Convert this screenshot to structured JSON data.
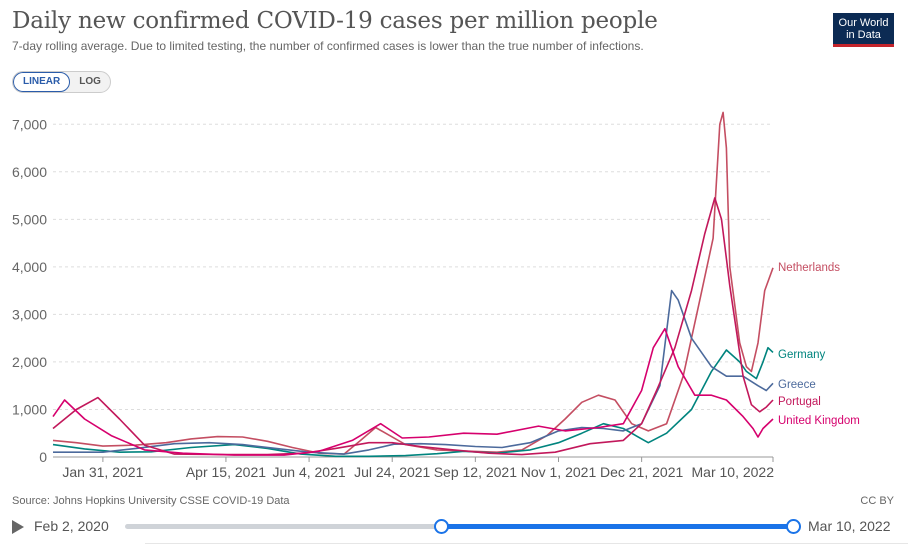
{
  "header": {
    "title": "Daily new confirmed COVID-19 cases per million people",
    "subtitle": "7-day rolling average. Due to limited testing, the number of confirmed cases is lower than the true number of infections.",
    "logo_line1": "Our World",
    "logo_line2": "in Data"
  },
  "controls": {
    "linear_label": "LINEAR",
    "log_label": "LOG",
    "active_scale": "linear"
  },
  "footer": {
    "source": "Source: Johns Hopkins University CSSE COVID-19 Data",
    "license": "CC BY"
  },
  "timeline": {
    "start_label": "Feb 2, 2020",
    "end_label": "Mar 10, 2022",
    "selected_start_fraction": 0.473,
    "selected_end_fraction": 1.0
  },
  "colors": {
    "netherlands": "#c44e62",
    "germany": "#00847e",
    "greece": "#4c6a9c",
    "portugal": "#c2185b",
    "uk": "#d6006d",
    "grid": "#dddddd",
    "accent": "#1a73e8"
  },
  "chart_data": {
    "type": "line",
    "title": "Daily new confirmed COVID-19 cases per million people",
    "xlabel": "",
    "ylabel": "",
    "x_range": [
      "2021-01-01",
      "2022-03-10"
    ],
    "xticks": [
      {
        "date": "2021-01-31",
        "label": "Jan 31, 2021"
      },
      {
        "date": "2021-04-15",
        "label": "Apr 15, 2021"
      },
      {
        "date": "2021-06-04",
        "label": "Jun 4, 2021"
      },
      {
        "date": "2021-07-24",
        "label": "Jul 24, 2021"
      },
      {
        "date": "2021-09-12",
        "label": "Sep 12, 2021"
      },
      {
        "date": "2021-11-01",
        "label": "Nov 1, 2021"
      },
      {
        "date": "2021-12-21",
        "label": "Dec 21, 2021"
      },
      {
        "date": "2022-03-10",
        "label": "Mar 10, 2022"
      }
    ],
    "ylim": [
      0,
      7300
    ],
    "yticks": [
      0,
      1000,
      2000,
      3000,
      4000,
      5000,
      6000,
      7000
    ],
    "ytick_labels": [
      "0",
      "1,000",
      "2,000",
      "3,000",
      "4,000",
      "5,000",
      "6,000",
      "7,000"
    ],
    "grid": true,
    "legend": "right-end labels",
    "series": [
      {
        "name": "Netherlands",
        "color": "#c44e62",
        "points": [
          [
            "2021-01-01",
            350
          ],
          [
            "2021-01-15",
            300
          ],
          [
            "2021-01-31",
            230
          ],
          [
            "2021-02-20",
            250
          ],
          [
            "2021-03-10",
            300
          ],
          [
            "2021-03-25",
            380
          ],
          [
            "2021-04-10",
            430
          ],
          [
            "2021-04-25",
            420
          ],
          [
            "2021-05-10",
            330
          ],
          [
            "2021-05-25",
            200
          ],
          [
            "2021-06-10",
            80
          ],
          [
            "2021-06-25",
            60
          ],
          [
            "2021-07-05",
            350
          ],
          [
            "2021-07-14",
            620
          ],
          [
            "2021-07-20",
            500
          ],
          [
            "2021-08-01",
            260
          ],
          [
            "2021-08-20",
            150
          ],
          [
            "2021-09-10",
            120
          ],
          [
            "2021-09-25",
            100
          ],
          [
            "2021-10-10",
            150
          ],
          [
            "2021-10-25",
            450
          ],
          [
            "2021-11-05",
            800
          ],
          [
            "2021-11-15",
            1150
          ],
          [
            "2021-11-25",
            1300
          ],
          [
            "2021-12-05",
            1200
          ],
          [
            "2021-12-15",
            700
          ],
          [
            "2021-12-25",
            550
          ],
          [
            "2022-01-05",
            700
          ],
          [
            "2022-01-15",
            1700
          ],
          [
            "2022-01-25",
            3300
          ],
          [
            "2022-02-02",
            4600
          ],
          [
            "2022-02-06",
            7000
          ],
          [
            "2022-02-08",
            7250
          ],
          [
            "2022-02-10",
            6500
          ],
          [
            "2022-02-12",
            4000
          ],
          [
            "2022-02-18",
            2400
          ],
          [
            "2022-02-22",
            1900
          ],
          [
            "2022-02-25",
            1800
          ],
          [
            "2022-03-01",
            2400
          ],
          [
            "2022-03-05",
            3500
          ],
          [
            "2022-03-10",
            3980
          ]
        ]
      },
      {
        "name": "Germany",
        "color": "#00847e",
        "points": [
          [
            "2021-01-01",
            260
          ],
          [
            "2021-01-20",
            170
          ],
          [
            "2021-02-10",
            100
          ],
          [
            "2021-03-01",
            110
          ],
          [
            "2021-03-25",
            200
          ],
          [
            "2021-04-20",
            260
          ],
          [
            "2021-05-10",
            180
          ],
          [
            "2021-05-30",
            60
          ],
          [
            "2021-06-20",
            15
          ],
          [
            "2021-07-10",
            15
          ],
          [
            "2021-08-01",
            30
          ],
          [
            "2021-08-20",
            70
          ],
          [
            "2021-09-05",
            120
          ],
          [
            "2021-09-25",
            80
          ],
          [
            "2021-10-15",
            150
          ],
          [
            "2021-11-01",
            300
          ],
          [
            "2021-11-15",
            500
          ],
          [
            "2021-11-28",
            700
          ],
          [
            "2021-12-10",
            600
          ],
          [
            "2021-12-25",
            300
          ],
          [
            "2022-01-05",
            500
          ],
          [
            "2022-01-20",
            1000
          ],
          [
            "2022-02-01",
            1800
          ],
          [
            "2022-02-10",
            2250
          ],
          [
            "2022-02-18",
            2000
          ],
          [
            "2022-02-22",
            1800
          ],
          [
            "2022-02-28",
            1650
          ],
          [
            "2022-03-04",
            2000
          ],
          [
            "2022-03-07",
            2300
          ],
          [
            "2022-03-10",
            2200
          ]
        ]
      },
      {
        "name": "Greece",
        "color": "#4c6a9c",
        "points": [
          [
            "2021-01-01",
            100
          ],
          [
            "2021-01-31",
            100
          ],
          [
            "2021-02-20",
            180
          ],
          [
            "2021-03-15",
            280
          ],
          [
            "2021-04-05",
            300
          ],
          [
            "2021-04-25",
            260
          ],
          [
            "2021-05-15",
            180
          ],
          [
            "2021-06-04",
            100
          ],
          [
            "2021-06-25",
            60
          ],
          [
            "2021-07-10",
            150
          ],
          [
            "2021-07-25",
            270
          ],
          [
            "2021-08-10",
            280
          ],
          [
            "2021-08-25",
            260
          ],
          [
            "2021-09-12",
            220
          ],
          [
            "2021-09-28",
            200
          ],
          [
            "2021-10-15",
            300
          ],
          [
            "2021-11-01",
            550
          ],
          [
            "2021-11-15",
            620
          ],
          [
            "2021-11-28",
            600
          ],
          [
            "2021-12-10",
            550
          ],
          [
            "2021-12-21",
            700
          ],
          [
            "2022-01-01",
            1500
          ],
          [
            "2022-01-08",
            3500
          ],
          [
            "2022-01-12",
            3300
          ],
          [
            "2022-01-20",
            2500
          ],
          [
            "2022-02-01",
            1900
          ],
          [
            "2022-02-10",
            1700
          ],
          [
            "2022-02-20",
            1700
          ],
          [
            "2022-03-01",
            1500
          ],
          [
            "2022-03-06",
            1400
          ],
          [
            "2022-03-10",
            1550
          ]
        ]
      },
      {
        "name": "Portugal",
        "color": "#c2185b",
        "points": [
          [
            "2021-01-01",
            600
          ],
          [
            "2021-01-15",
            1000
          ],
          [
            "2021-01-28",
            1250
          ],
          [
            "2021-02-10",
            800
          ],
          [
            "2021-02-25",
            250
          ],
          [
            "2021-03-15",
            60
          ],
          [
            "2021-04-15",
            50
          ],
          [
            "2021-05-10",
            50
          ],
          [
            "2021-06-01",
            80
          ],
          [
            "2021-06-20",
            180
          ],
          [
            "2021-07-10",
            300
          ],
          [
            "2021-07-24",
            300
          ],
          [
            "2021-08-10",
            220
          ],
          [
            "2021-08-30",
            150
          ],
          [
            "2021-09-20",
            80
          ],
          [
            "2021-10-10",
            50
          ],
          [
            "2021-10-30",
            100
          ],
          [
            "2021-11-20",
            280
          ],
          [
            "2021-12-10",
            350
          ],
          [
            "2021-12-21",
            700
          ],
          [
            "2021-12-30",
            1400
          ],
          [
            "2022-01-10",
            2300
          ],
          [
            "2022-01-20",
            3500
          ],
          [
            "2022-01-28",
            4700
          ],
          [
            "2022-02-03",
            5450
          ],
          [
            "2022-02-07",
            5000
          ],
          [
            "2022-02-12",
            3600
          ],
          [
            "2022-02-20",
            1700
          ],
          [
            "2022-02-25",
            1100
          ],
          [
            "2022-03-02",
            950
          ],
          [
            "2022-03-06",
            1050
          ],
          [
            "2022-03-10",
            1200
          ]
        ]
      },
      {
        "name": "United Kingdom",
        "color": "#d6006d",
        "points": [
          [
            "2021-01-01",
            850
          ],
          [
            "2021-01-08",
            1200
          ],
          [
            "2021-01-20",
            800
          ],
          [
            "2021-02-05",
            450
          ],
          [
            "2021-02-25",
            150
          ],
          [
            "2021-03-20",
            80
          ],
          [
            "2021-04-20",
            40
          ],
          [
            "2021-05-20",
            40
          ],
          [
            "2021-06-10",
            120
          ],
          [
            "2021-06-30",
            350
          ],
          [
            "2021-07-17",
            700
          ],
          [
            "2021-07-30",
            400
          ],
          [
            "2021-08-15",
            420
          ],
          [
            "2021-09-05",
            500
          ],
          [
            "2021-09-25",
            480
          ],
          [
            "2021-10-20",
            650
          ],
          [
            "2021-11-05",
            550
          ],
          [
            "2021-11-25",
            620
          ],
          [
            "2021-12-10",
            700
          ],
          [
            "2021-12-21",
            1400
          ],
          [
            "2021-12-28",
            2300
          ],
          [
            "2022-01-04",
            2700
          ],
          [
            "2022-01-12",
            1900
          ],
          [
            "2022-01-22",
            1300
          ],
          [
            "2022-02-01",
            1300
          ],
          [
            "2022-02-10",
            1200
          ],
          [
            "2022-02-20",
            850
          ],
          [
            "2022-02-26",
            600
          ],
          [
            "2022-03-01",
            420
          ],
          [
            "2022-03-04",
            600
          ],
          [
            "2022-03-10",
            800
          ]
        ]
      }
    ]
  }
}
